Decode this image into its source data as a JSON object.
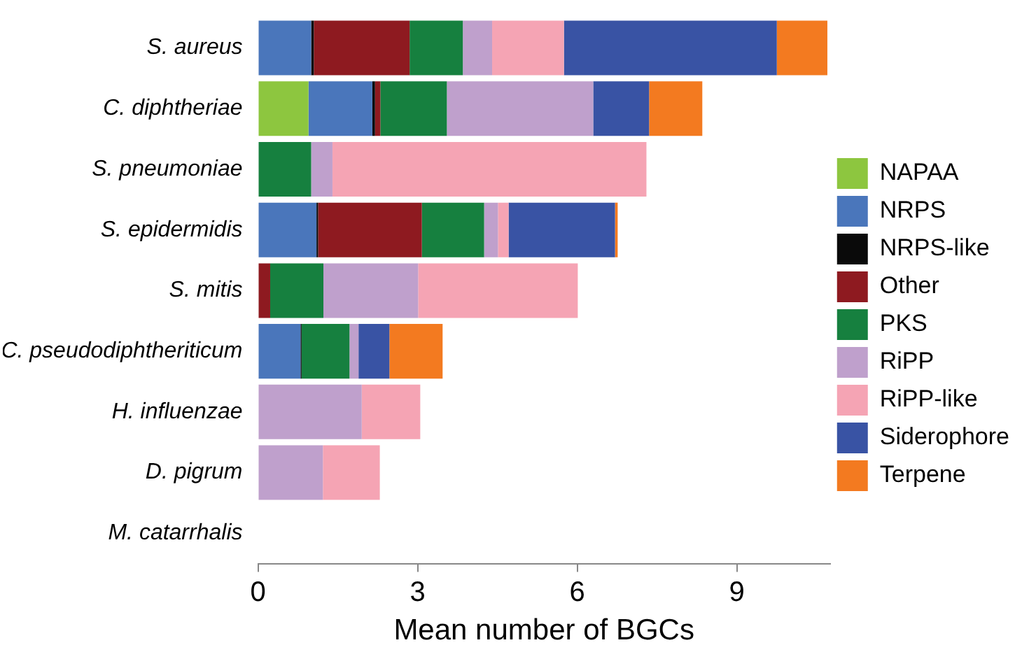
{
  "chart_data": {
    "type": "bar",
    "orientation": "horizontal",
    "stacked": true,
    "xlabel": "Mean number of BGCs",
    "categories": [
      "S. aureus",
      "C. diphtheriae",
      "S. pneumoniae",
      "S. epidermidis",
      "S. mitis",
      "C. pseudodiphtheriticum",
      "H. influenzae",
      "D. pigrum",
      "M. catarrhalis"
    ],
    "series": [
      {
        "name": "NAPAA",
        "color": "#8dc63f",
        "values": [
          0,
          0.95,
          0,
          0,
          0,
          0,
          0,
          0,
          0
        ]
      },
      {
        "name": "NRPS",
        "color": "#4a76bb",
        "values": [
          1.0,
          1.2,
          0,
          1.1,
          0,
          0.8,
          0,
          0,
          0
        ]
      },
      {
        "name": "NRPS-like",
        "color": "#0a0a0a",
        "values": [
          0.05,
          0.05,
          0,
          0.03,
          0,
          0.02,
          0,
          0,
          0
        ]
      },
      {
        "name": "Other",
        "color": "#8e1a20",
        "values": [
          1.8,
          0.1,
          0,
          1.95,
          0.23,
          0,
          0,
          0,
          0
        ]
      },
      {
        "name": "PKS",
        "color": "#16803f",
        "values": [
          1.0,
          1.25,
          1.0,
          1.17,
          1.0,
          0.9,
          0,
          0,
          0
        ]
      },
      {
        "name": "RiPP",
        "color": "#bfa0cc",
        "values": [
          0.55,
          2.75,
          0.4,
          0.26,
          1.78,
          0.17,
          1.95,
          1.22,
          0
        ]
      },
      {
        "name": "RiPP-like",
        "color": "#f5a4b4",
        "values": [
          1.35,
          0,
          5.9,
          0.2,
          3.0,
          0,
          1.1,
          1.07,
          0
        ]
      },
      {
        "name": "Siderophore",
        "color": "#3953a4",
        "values": [
          4.0,
          1.05,
          0,
          2.0,
          0,
          0.58,
          0,
          0,
          0
        ]
      },
      {
        "name": "Terpene",
        "color": "#f37a20",
        "values": [
          0.95,
          1.0,
          0,
          0.05,
          0,
          1.0,
          0,
          0,
          0
        ]
      }
    ],
    "xlim": [
      0,
      10.75
    ],
    "xticks": [
      0,
      3,
      6,
      9
    ],
    "grid": false,
    "legend": "right"
  }
}
